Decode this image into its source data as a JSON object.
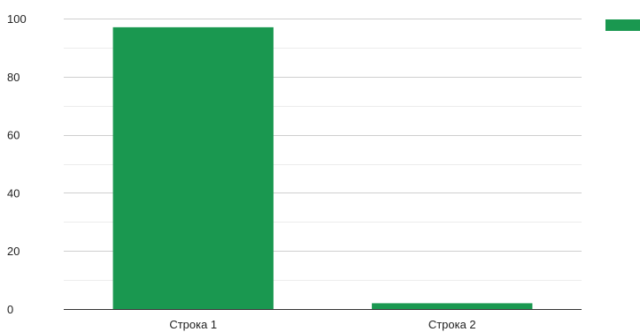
{
  "chart_data": {
    "type": "bar",
    "categories": [
      "Строка 1",
      "Строка 2"
    ],
    "series": [
      {
        "values": [
          97,
          2
        ],
        "color": "#1a9850"
      }
    ],
    "ylim": [
      0,
      100
    ],
    "yticks": [
      0,
      20,
      40,
      60,
      80,
      100
    ],
    "minor_gridlines": true,
    "grid": true,
    "legend": {
      "position": "top-right",
      "swatch_color": "#1a9850"
    },
    "title": "",
    "xlabel": "",
    "ylabel": ""
  }
}
